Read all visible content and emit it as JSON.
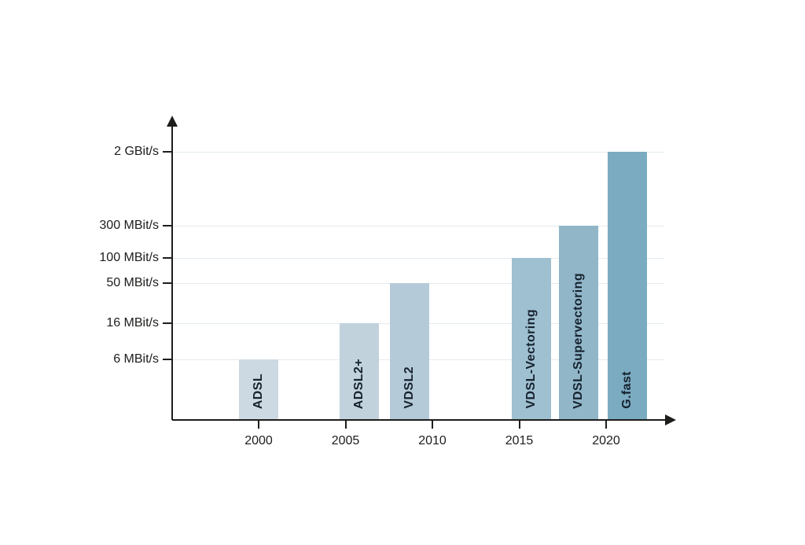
{
  "chart_data": {
    "type": "bar",
    "title": "",
    "xlabel": "",
    "ylabel": "",
    "grid": true,
    "legend": "none",
    "x_axis": {
      "tick_labels": [
        "2000",
        "2005",
        "2010",
        "2015",
        "2020"
      ],
      "tick_years": [
        2000,
        2005,
        2010,
        2015,
        2020
      ],
      "arrow": "right"
    },
    "y_axis": {
      "scale": "log",
      "tick_labels": [
        "2 GBit/s",
        "300 MBit/s",
        "100 MBit/s",
        "50 MBit/s",
        "16 MBit/s",
        "6 MBit/s"
      ],
      "tick_values_mbit": [
        2000,
        300,
        100,
        50,
        16,
        6
      ],
      "arrow": "up"
    },
    "bars": [
      {
        "label": "ADSL",
        "value_mbit": 6,
        "value_label": "6 MBit/s",
        "center_year": 2000.0,
        "color": "#ccd9e2"
      },
      {
        "label": "ADSL2+",
        "value_mbit": 16,
        "value_label": "16 MBit/s",
        "center_year": 2005.8,
        "color": "#c1d2dd"
      },
      {
        "label": "VDSL2",
        "value_mbit": 50,
        "value_label": "50 MBit/s",
        "center_year": 2008.7,
        "color": "#b5cad8"
      },
      {
        "label": "VDSL-Vectoring",
        "value_mbit": 100,
        "value_label": "100 MBit/s",
        "center_year": 2015.7,
        "color": "#9fc0d1"
      },
      {
        "label": "VDSL-Supervectoring",
        "value_mbit": 300,
        "value_label": "300 MBit/s",
        "center_year": 2018.4,
        "color": "#90b6c8"
      },
      {
        "label": "G.fast",
        "value_mbit": 2000,
        "value_label": "2 GBit/s",
        "center_year": 2021.2,
        "color": "#7babc1"
      }
    ],
    "colors": {
      "axis": "#1d1d1b",
      "grid": "#e4ebf0",
      "bar_label_text": "#16222e",
      "tick_label_text": "#1d1d1b",
      "background": "#ffffff"
    }
  }
}
